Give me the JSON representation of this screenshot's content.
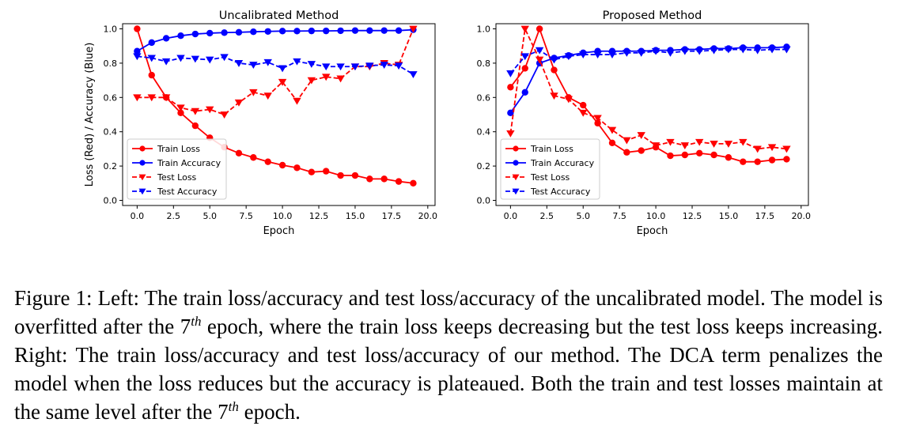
{
  "chart_data": [
    {
      "type": "line",
      "title": "Uncalibrated Method",
      "xlabel": "Epoch",
      "ylabel": "Loss (Red) / Accuracy (Blue)",
      "xlim": [
        -1,
        20.5
      ],
      "ylim": [
        -0.03,
        1.03
      ],
      "xticks": [
        0,
        2.5,
        5,
        7.5,
        10,
        12.5,
        15,
        17.5,
        20
      ],
      "xtick_labels": [
        "0.0",
        "2.5",
        "5.0",
        "7.5",
        "10.0",
        "12.5",
        "15.0",
        "17.5",
        "20.0"
      ],
      "yticks": [
        0,
        0.2,
        0.4,
        0.6,
        0.8,
        1.0
      ],
      "ytick_labels": [
        "0.0",
        "0.2",
        "0.4",
        "0.6",
        "0.8",
        "1.0"
      ],
      "grid": false,
      "legend_position": "lower-left",
      "x": [
        0,
        1,
        2,
        3,
        4,
        5,
        6,
        7,
        8,
        9,
        10,
        11,
        12,
        13,
        14,
        15,
        16,
        17,
        18,
        19
      ],
      "series": [
        {
          "name": "Train Loss",
          "color": "#ff0000",
          "linestyle": "solid",
          "marker": "circle",
          "values": [
            1.0,
            0.73,
            0.6,
            0.51,
            0.435,
            0.365,
            0.31,
            0.275,
            0.25,
            0.225,
            0.205,
            0.19,
            0.165,
            0.17,
            0.145,
            0.145,
            0.125,
            0.125,
            0.11,
            0.1
          ]
        },
        {
          "name": "Train Accuracy",
          "color": "#0000ff",
          "linestyle": "solid",
          "marker": "circle",
          "values": [
            0.87,
            0.92,
            0.945,
            0.96,
            0.97,
            0.975,
            0.978,
            0.98,
            0.983,
            0.985,
            0.987,
            0.987,
            0.988,
            0.988,
            0.989,
            0.99,
            0.99,
            0.99,
            0.99,
            0.995
          ]
        },
        {
          "name": "Test Loss",
          "color": "#ff0000",
          "linestyle": "dashed",
          "marker": "triangle-down",
          "values": [
            0.6,
            0.6,
            0.6,
            0.54,
            0.52,
            0.53,
            0.5,
            0.57,
            0.63,
            0.61,
            0.69,
            0.58,
            0.7,
            0.72,
            0.71,
            0.78,
            0.78,
            0.8,
            0.79,
            1.0
          ]
        },
        {
          "name": "Test Accuracy",
          "color": "#0000ff",
          "linestyle": "dashed",
          "marker": "triangle-down",
          "values": [
            0.84,
            0.83,
            0.81,
            0.83,
            0.825,
            0.82,
            0.835,
            0.8,
            0.79,
            0.805,
            0.77,
            0.81,
            0.795,
            0.78,
            0.78,
            0.78,
            0.785,
            0.79,
            0.785,
            0.735
          ]
        }
      ]
    },
    {
      "type": "line",
      "title": "Proposed Method",
      "xlabel": "Epoch",
      "ylabel": "",
      "xlim": [
        -1,
        20.5
      ],
      "ylim": [
        -0.03,
        1.03
      ],
      "xticks": [
        0,
        2.5,
        5,
        7.5,
        10,
        12.5,
        15,
        17.5,
        20
      ],
      "xtick_labels": [
        "0.0",
        "2.5",
        "5.0",
        "7.5",
        "10.0",
        "12.5",
        "15.0",
        "17.5",
        "20.0"
      ],
      "yticks": [
        0,
        0.2,
        0.4,
        0.6,
        0.8,
        1.0
      ],
      "ytick_labels": [
        "0.0",
        "0.2",
        "0.4",
        "0.6",
        "0.8",
        "1.0"
      ],
      "grid": false,
      "legend_position": "lower-left",
      "x": [
        0,
        1,
        2,
        3,
        4,
        5,
        6,
        7,
        8,
        9,
        10,
        11,
        12,
        13,
        14,
        15,
        16,
        17,
        18,
        19
      ],
      "series": [
        {
          "name": "Train Loss",
          "color": "#ff0000",
          "linestyle": "solid",
          "marker": "circle",
          "values": [
            0.66,
            0.77,
            1.0,
            0.76,
            0.6,
            0.555,
            0.45,
            0.335,
            0.28,
            0.29,
            0.31,
            0.26,
            0.265,
            0.275,
            0.265,
            0.25,
            0.225,
            0.225,
            0.235,
            0.24
          ]
        },
        {
          "name": "Train Accuracy",
          "color": "#0000ff",
          "linestyle": "solid",
          "marker": "circle",
          "values": [
            0.51,
            0.63,
            0.8,
            0.83,
            0.845,
            0.86,
            0.87,
            0.87,
            0.87,
            0.87,
            0.875,
            0.875,
            0.88,
            0.88,
            0.885,
            0.885,
            0.89,
            0.89,
            0.89,
            0.895
          ]
        },
        {
          "name": "Test Loss",
          "color": "#ff0000",
          "linestyle": "dashed",
          "marker": "triangle-down",
          "values": [
            0.39,
            1.0,
            0.82,
            0.61,
            0.59,
            0.51,
            0.48,
            0.41,
            0.35,
            0.38,
            0.32,
            0.34,
            0.32,
            0.34,
            0.33,
            0.33,
            0.34,
            0.3,
            0.31,
            0.3
          ]
        },
        {
          "name": "Test Accuracy",
          "color": "#0000ff",
          "linestyle": "dashed",
          "marker": "triangle-down",
          "values": [
            0.74,
            0.84,
            0.875,
            0.82,
            0.84,
            0.85,
            0.85,
            0.85,
            0.86,
            0.86,
            0.87,
            0.86,
            0.87,
            0.87,
            0.875,
            0.88,
            0.88,
            0.875,
            0.88,
            0.88
          ]
        }
      ]
    }
  ],
  "caption": {
    "p1": "Figure 1: Left: The train loss/accuracy and test loss/accuracy of the uncalibrated model. The model is overfitted after the 7",
    "sup1": "th",
    "p2": " epoch, where the train loss keeps decreasing but the test loss keeps increasing. Right: The train loss/accuracy and test loss/accuracy of our method. The DCA term penalizes the model when the loss reduces but the accuracy is plateaued. Both the train and test losses maintain at the same level after the 7",
    "sup2": "th",
    "p3": " epoch."
  }
}
